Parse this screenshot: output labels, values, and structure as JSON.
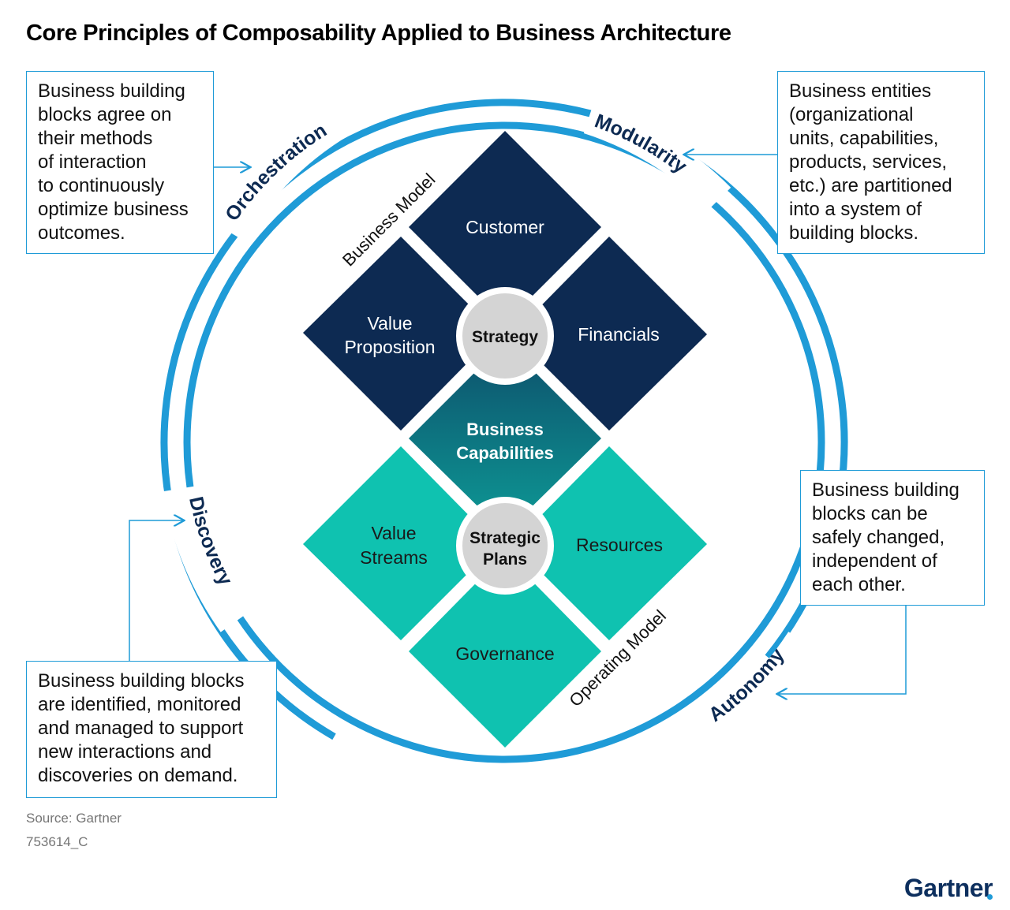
{
  "title": "Core Principles of Composability Applied to Business Architecture",
  "callouts": {
    "orchestration": "Business building\nblocks agree on\ntheir methods\nof interaction\nto continuously\noptimize business\noutcomes.",
    "modularity": "Business entities\n(organizational\nunits, capabilities,\nproducts, services,\netc.) are partitioned\ninto a system of\nbuilding blocks.",
    "autonomy": "Business building\nblocks can be\nsafely changed,\nindependent of\neach other.",
    "discovery": "Business building blocks\nare identified, monitored\nand managed to support\nnew interactions and\ndiscoveries on demand."
  },
  "ring_labels": {
    "orchestration": "Orchestration",
    "modularity": "Modularity",
    "autonomy": "Autonomy",
    "discovery": "Discovery"
  },
  "section_labels": {
    "business_model": "Business Model",
    "operating_model": "Operating Model"
  },
  "diamonds": {
    "customer": "Customer",
    "value_proposition_1": "Value",
    "value_proposition_2": "Proposition",
    "financials": "Financials",
    "business_capabilities_1": "Business",
    "business_capabilities_2": "Capabilities",
    "value_streams_1": "Value",
    "value_streams_2": "Streams",
    "resources": "Resources",
    "governance": "Governance"
  },
  "hubs": {
    "strategy": "Strategy",
    "strategic_plans_1": "Strategic",
    "strategic_plans_2": "Plans"
  },
  "source": "Source: Gartner",
  "figure_id": "753614_C",
  "logo": "Gartner",
  "colors": {
    "ring": "#1f9bd7",
    "navy": "#0d2a52",
    "teal": "#0fc2b0",
    "teal_gradient_top": "#0d5a6e",
    "teal_gradient_bottom": "#0d8a8e",
    "hub": "#d4d4d4",
    "ring_label": "#0d2a52"
  }
}
